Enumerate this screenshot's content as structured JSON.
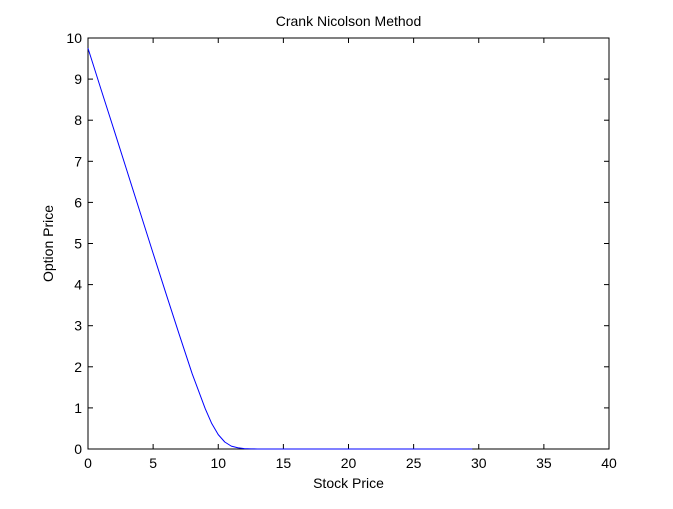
{
  "chart_data": {
    "type": "line",
    "title": "Crank Nicolson Method",
    "xlabel": "Stock Price",
    "ylabel": "Option Price",
    "xlim": [
      0,
      40
    ],
    "ylim": [
      0,
      10
    ],
    "xticks": [
      0,
      5,
      10,
      15,
      20,
      25,
      30,
      35,
      40
    ],
    "yticks": [
      0,
      1,
      2,
      3,
      4,
      5,
      6,
      7,
      8,
      9,
      10
    ],
    "grid": false,
    "legend": "none",
    "series": [
      {
        "color": "#0000ff",
        "x": [
          0,
          1,
          2,
          3,
          4,
          5,
          6,
          7,
          8,
          9,
          9.5,
          10,
          10.5,
          11,
          11.5,
          12,
          12.5,
          13,
          14,
          16,
          18,
          20,
          22,
          24,
          26,
          28,
          29.5
        ],
        "y": [
          9.75,
          8.75,
          7.76,
          6.76,
          5.76,
          4.76,
          3.77,
          2.79,
          1.83,
          0.98,
          0.62,
          0.35,
          0.17,
          0.07,
          0.03,
          0.01,
          0.004,
          0.001,
          0,
          0,
          0,
          0,
          0,
          0,
          0,
          0,
          0
        ]
      }
    ]
  }
}
